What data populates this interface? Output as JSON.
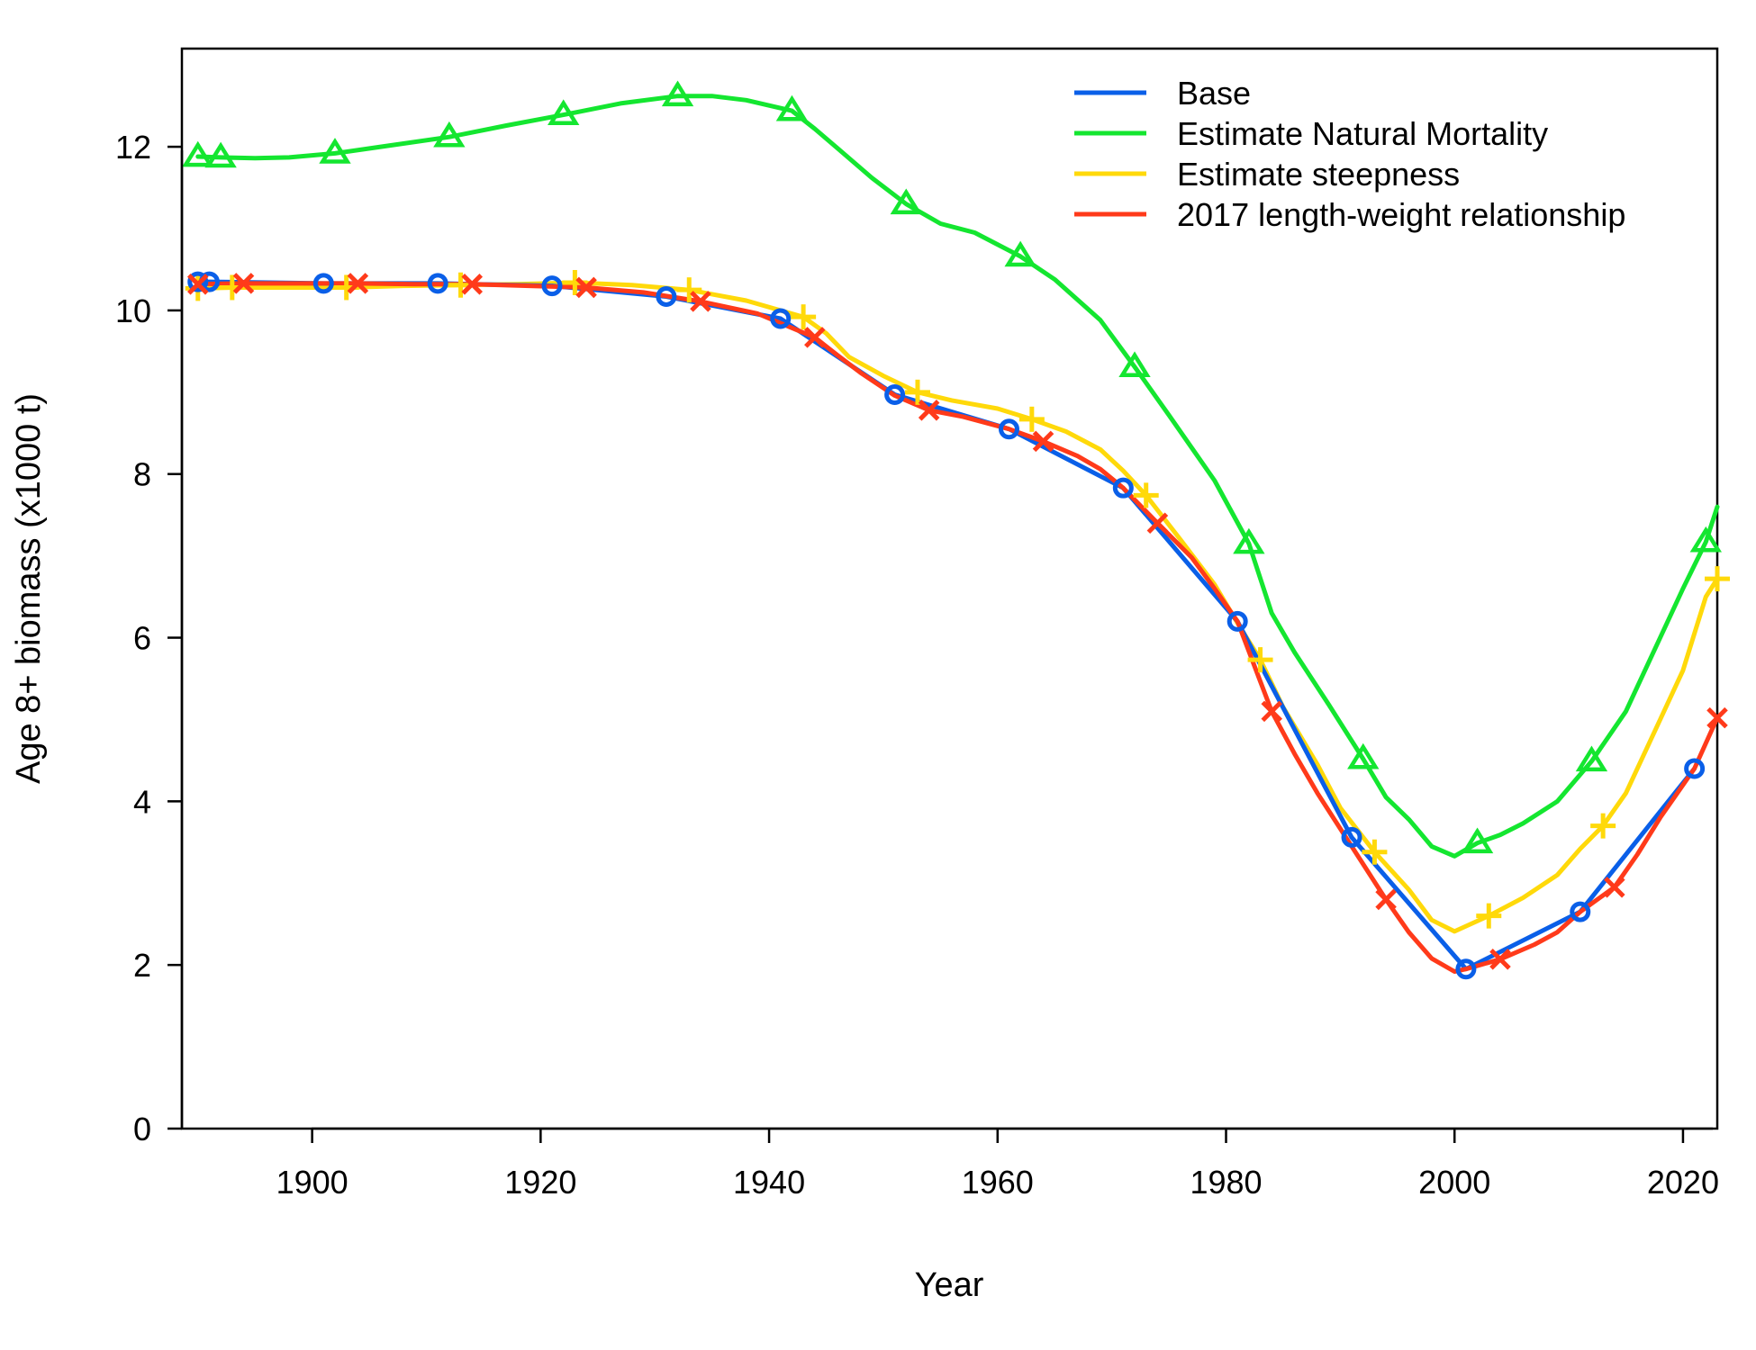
{
  "chart_data": {
    "type": "line",
    "title": "",
    "xlabel": "Year",
    "ylabel": "Age 8+ biomass (x1000 t)",
    "xlim": [
      1888.6,
      2023
    ],
    "ylim": [
      0,
      13.2
    ],
    "xticks": [
      1900,
      1920,
      1940,
      1960,
      1980,
      2000,
      2020
    ],
    "yticks": [
      0,
      2,
      4,
      6,
      8,
      10,
      12
    ],
    "grid": false,
    "legend_position": "top-right",
    "series": [
      {
        "name": "Base",
        "color": "#0a5fe8",
        "marker": "circle",
        "x": [
          1890,
          1891,
          1901,
          1911,
          1921,
          1931,
          1941,
          1951,
          1961,
          1971,
          1981,
          1991,
          2001,
          2011,
          2021
        ],
        "y": [
          10.35,
          10.35,
          10.33,
          10.33,
          10.3,
          10.17,
          9.9,
          8.97,
          8.55,
          7.83,
          6.2,
          3.56,
          1.95,
          2.65,
          4.4
        ]
      },
      {
        "name": "Estimate Natural Mortality",
        "color": "#14e630",
        "marker": "triangle",
        "x": [
          1890,
          1892,
          1895,
          1898,
          1902,
          1906,
          1912,
          1917,
          1922,
          1927,
          1932,
          1935,
          1938,
          1942,
          1944,
          1946,
          1949,
          1952,
          1955,
          1958,
          1962,
          1965,
          1969,
          1972,
          1975,
          1979,
          1982,
          1984,
          1986,
          1989,
          1992,
          1994,
          1996,
          1998,
          2000,
          2002,
          2004,
          2006,
          2009,
          2012,
          2015,
          2018,
          2020,
          2022,
          2023
        ],
        "y": [
          11.88,
          11.87,
          11.86,
          11.87,
          11.92,
          12.0,
          12.12,
          12.26,
          12.39,
          12.53,
          12.62,
          12.62,
          12.57,
          12.44,
          12.22,
          11.98,
          11.62,
          11.3,
          11.06,
          10.95,
          10.66,
          10.38,
          9.88,
          9.31,
          8.72,
          7.92,
          7.15,
          6.3,
          5.82,
          5.18,
          4.52,
          4.05,
          3.78,
          3.45,
          3.33,
          3.49,
          3.59,
          3.73,
          4.0,
          4.49,
          5.1,
          6.0,
          6.6,
          7.17,
          7.6
        ]
      },
      {
        "name": "Estimate steepness",
        "color": "#ffd90a",
        "marker": "plus",
        "x": [
          1890,
          1893,
          1898,
          1903,
          1908,
          1913,
          1918,
          1923,
          1928,
          1933,
          1938,
          1943,
          1945,
          1947,
          1950,
          1953,
          1956,
          1960,
          1963,
          1966,
          1969,
          1971,
          1973,
          1976,
          1979,
          1981,
          1983,
          1985,
          1988,
          1990,
          1993,
          1996,
          1998,
          2000,
          2003,
          2006,
          2009,
          2011,
          2013,
          2015,
          2018,
          2020,
          2022,
          2023
        ],
        "y": [
          10.27,
          10.28,
          10.28,
          10.28,
          10.3,
          10.31,
          10.32,
          10.34,
          10.31,
          10.25,
          10.12,
          9.92,
          9.72,
          9.43,
          9.2,
          9.0,
          8.9,
          8.8,
          8.67,
          8.52,
          8.3,
          8.04,
          7.74,
          7.2,
          6.65,
          6.18,
          5.73,
          5.15,
          4.45,
          3.92,
          3.38,
          2.92,
          2.55,
          2.41,
          2.6,
          2.82,
          3.1,
          3.42,
          3.7,
          4.1,
          5.0,
          5.6,
          6.5,
          6.72
        ]
      },
      {
        "name": "2017 length-weight relationship",
        "color": "#ff3a1a",
        "marker": "x",
        "x": [
          1890,
          1894,
          1899,
          1904,
          1909,
          1914,
          1919,
          1924,
          1929,
          1934,
          1939,
          1944,
          1946,
          1948,
          1951,
          1954,
          1957,
          1961,
          1964,
          1967,
          1969,
          1971,
          1974,
          1977,
          1979,
          1981,
          1984,
          1986,
          1988,
          1991,
          1994,
          1996,
          1998,
          2000,
          2001,
          2004,
          2007,
          2009,
          2011,
          2014,
          2016,
          2018,
          2021,
          2023
        ],
        "y": [
          10.32,
          10.33,
          10.33,
          10.33,
          10.32,
          10.32,
          10.3,
          10.28,
          10.22,
          10.11,
          9.96,
          9.67,
          9.45,
          9.24,
          8.96,
          8.78,
          8.7,
          8.55,
          8.4,
          8.22,
          8.06,
          7.83,
          7.4,
          6.98,
          6.6,
          6.2,
          5.1,
          4.58,
          4.1,
          3.45,
          2.8,
          2.4,
          2.08,
          1.92,
          1.95,
          2.07,
          2.25,
          2.4,
          2.65,
          2.95,
          3.35,
          3.8,
          4.4,
          5.02
        ]
      }
    ],
    "markers": [
      {
        "series": 0,
        "x": [
          1890,
          1891,
          1901,
          1911,
          1921,
          1931,
          1941,
          1951,
          1961,
          1971,
          1981,
          1991,
          2001,
          2011,
          2021
        ]
      },
      {
        "series": 1,
        "x": [
          1890,
          1892,
          1902,
          1912,
          1922,
          1932,
          1942,
          1952,
          1962,
          1972,
          1982,
          1992,
          2002,
          2012,
          2022
        ]
      },
      {
        "series": 2,
        "x": [
          1890,
          1893,
          1903,
          1913,
          1923,
          1933,
          1943,
          1953,
          1963,
          1973,
          1983,
          1993,
          2003,
          2013,
          2023
        ]
      },
      {
        "series": 3,
        "x": [
          1890,
          1894,
          1904,
          1914,
          1924,
          1934,
          1944,
          1954,
          1964,
          1974,
          1984,
          1994,
          2004,
          2014,
          2023
        ]
      }
    ]
  }
}
